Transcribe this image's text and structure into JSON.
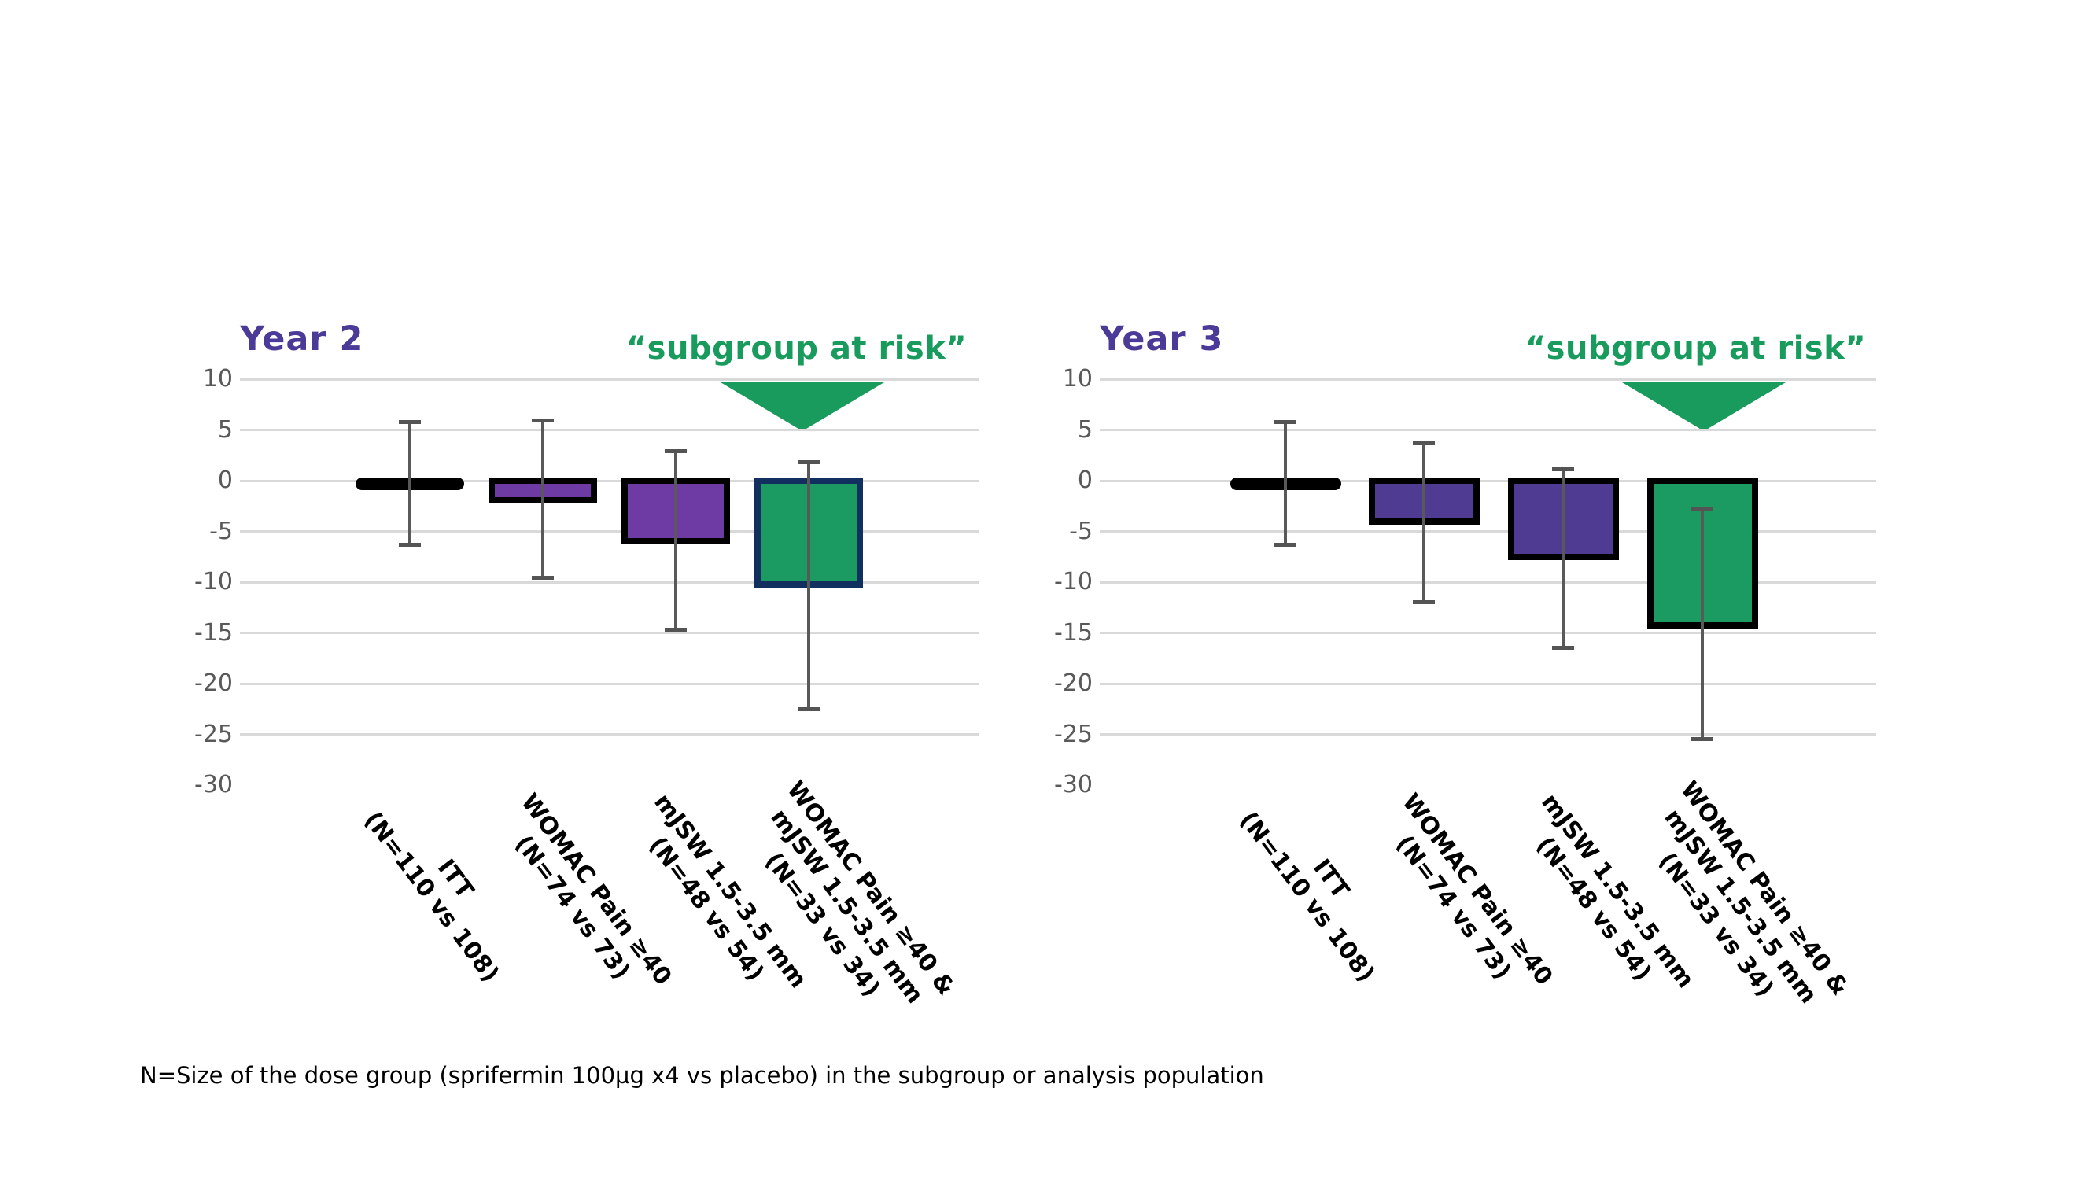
{
  "note": "N=Size of the dose group (sprifermin 100µg x4 vs placebo) in the subgroup or analysis population",
  "colors": {
    "title_purple": "#4b3a97",
    "annotation_green": "#1a9b5e",
    "bar_green": "#1b9b62",
    "bar_purple_year2": "#6e3aa3",
    "bar_purple_year3": "#4f3b92",
    "bar_navy_border": "#12305f",
    "bar_black_border": "#000000",
    "itt_fill_year2": "#443488",
    "gridline_gray": "#d9d9d9",
    "axis_text_gray": "#595959",
    "error_bar_gray": "#595959"
  },
  "chart_data": [
    {
      "type": "bar",
      "title": "Year 2",
      "annotation": "“subgroup at risk”",
      "annotation_target": "WOMAC Pain ≥40 & mJSW 1.5-3.5 mm",
      "categories": [
        [
          "ITT",
          "(N=110 vs 108)"
        ],
        [
          "WOMAC Pain ≥40",
          "(N=74 vs 73)"
        ],
        [
          "mJSW 1.5-3.5 mm",
          "(N=48 vs 54)"
        ],
        [
          "WOMAC Pain ≥40 &",
          "mJSW 1.5-3.5 mm",
          "(N=33 vs 34)"
        ]
      ],
      "values": [
        -0.5,
        -1.9,
        -6.0,
        -10.2
      ],
      "error_high": [
        5.8,
        5.9,
        2.9,
        1.8
      ],
      "error_low": [
        -6.3,
        -9.6,
        -14.7,
        -22.5
      ],
      "bar_fills": [
        "#443488",
        "#6e3aa3",
        "#6e3aa3",
        "#1b9b62"
      ],
      "bar_borders": [
        "#000000",
        "#000000",
        "#000000",
        "#12305f"
      ],
      "y_ticks": [
        10,
        5,
        0,
        -5,
        -10,
        -15,
        -20,
        -25,
        -30
      ],
      "gridlines": [
        10,
        5,
        0,
        -5,
        -10,
        -15,
        -20,
        -25
      ],
      "ylim": [
        -30,
        10
      ],
      "xlabel": "",
      "ylabel": "",
      "legend": "none",
      "grid": "horizontal"
    },
    {
      "type": "bar",
      "title": "Year 3",
      "annotation": "“subgroup at risk”",
      "annotation_target": "WOMAC Pain ≥40 & mJSW 1.5-3.5 mm",
      "categories": [
        [
          "ITT",
          "(N=110 vs 108)"
        ],
        [
          "WOMAC Pain ≥40",
          "(N=74 vs 73)"
        ],
        [
          "mJSW 1.5-3.5 mm",
          "(N=48 vs 54)"
        ],
        [
          "WOMAC Pain ≥40 &",
          "mJSW 1.5-3.5 mm",
          "(N=33 vs 34)"
        ]
      ],
      "values": [
        -0.5,
        -4.0,
        -7.5,
        -14.3
      ],
      "error_high": [
        5.8,
        3.7,
        1.1,
        -2.8
      ],
      "error_low": [
        -6.3,
        -12.0,
        -16.5,
        -25.5
      ],
      "bar_fills": [
        "#000000",
        "#4f3b92",
        "#4f3b92",
        "#1b9b62"
      ],
      "bar_borders": [
        "#000000",
        "#000000",
        "#000000",
        "#000000"
      ],
      "y_ticks": [
        10,
        5,
        0,
        -5,
        -10,
        -15,
        -20,
        -25,
        -30
      ],
      "gridlines": [
        10,
        5,
        0,
        -5,
        -10,
        -15,
        -20,
        -25
      ],
      "ylim": [
        -30,
        10
      ],
      "xlabel": "",
      "ylabel": "",
      "legend": "none",
      "grid": "horizontal"
    }
  ]
}
